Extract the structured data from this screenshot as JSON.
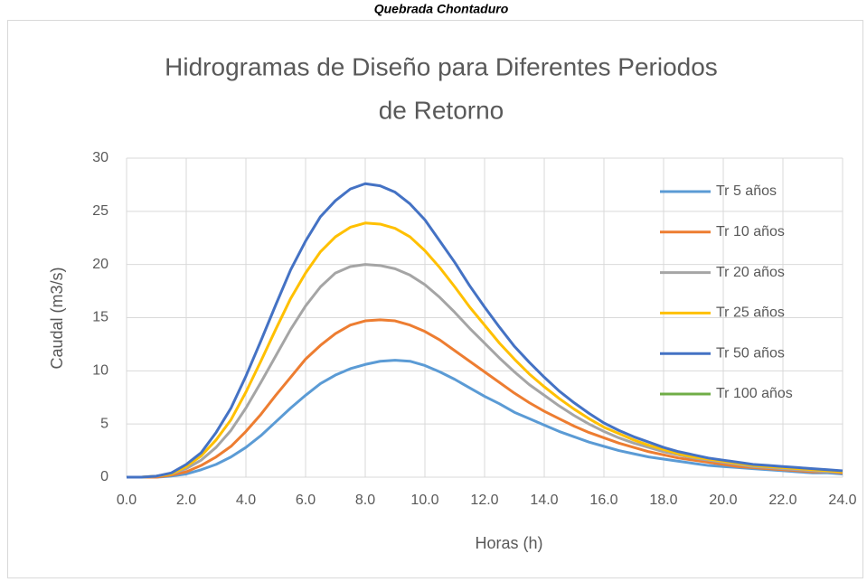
{
  "caption": "Quebrada Chontaduro",
  "chart_data": {
    "type": "line",
    "title": [
      "Hidrogramas de Diseño para Diferentes Periodos",
      "de Retorno"
    ],
    "x_label": "Horas (h)",
    "y_label": "Caudal (m3/s)",
    "x": [
      0,
      0.5,
      1,
      1.5,
      2,
      2.5,
      3,
      3.5,
      4,
      4.5,
      5,
      5.5,
      6,
      6.5,
      7,
      7.5,
      8,
      8.5,
      9,
      9.5,
      10,
      10.5,
      11,
      11.5,
      12,
      12.5,
      13,
      13.5,
      14,
      14.5,
      15,
      15.5,
      16,
      16.5,
      17,
      17.5,
      18,
      18.5,
      19,
      19.5,
      20,
      20.5,
      21,
      21.5,
      22,
      22.5,
      23,
      23.5,
      24
    ],
    "series": [
      {
        "name": "Tr 5 años",
        "color": "#5b9bd5",
        "values": [
          0,
          0,
          0,
          0.1,
          0.3,
          0.7,
          1.2,
          1.9,
          2.8,
          3.9,
          5.2,
          6.5,
          7.7,
          8.8,
          9.6,
          10.2,
          10.6,
          10.9,
          11.0,
          10.9,
          10.5,
          9.9,
          9.2,
          8.4,
          7.6,
          6.9,
          6.1,
          5.5,
          4.9,
          4.3,
          3.8,
          3.3,
          2.9,
          2.5,
          2.2,
          1.9,
          1.7,
          1.5,
          1.3,
          1.1,
          1.0,
          0.9,
          0.8,
          0.7,
          0.6,
          0.5,
          0.4,
          0.4,
          0.3
        ]
      },
      {
        "name": "Tr 10 años",
        "color": "#ed7d31",
        "values": [
          0,
          0,
          0,
          0.2,
          0.5,
          1.1,
          1.9,
          2.9,
          4.3,
          5.9,
          7.7,
          9.4,
          11.1,
          12.4,
          13.5,
          14.3,
          14.7,
          14.8,
          14.7,
          14.3,
          13.7,
          12.9,
          11.9,
          10.9,
          9.9,
          8.9,
          7.9,
          7.0,
          6.2,
          5.5,
          4.8,
          4.2,
          3.7,
          3.2,
          2.8,
          2.4,
          2.1,
          1.8,
          1.6,
          1.4,
          1.2,
          1.0,
          0.9,
          0.8,
          0.7,
          0.6,
          0.5,
          0.5,
          0.4
        ]
      },
      {
        "name": "Tr 20 años",
        "color": "#a5a5a5",
        "values": [
          0,
          0,
          0.1,
          0.3,
          0.8,
          1.6,
          2.8,
          4.4,
          6.5,
          8.9,
          11.4,
          13.9,
          16.1,
          17.9,
          19.2,
          19.8,
          20.0,
          19.9,
          19.6,
          19.0,
          18.1,
          16.9,
          15.5,
          14.0,
          12.6,
          11.2,
          9.9,
          8.7,
          7.7,
          6.7,
          5.8,
          5.0,
          4.3,
          3.7,
          3.2,
          2.8,
          2.4,
          2.1,
          1.8,
          1.6,
          1.4,
          1.2,
          1.0,
          0.9,
          0.8,
          0.7,
          0.6,
          0.5,
          0.5
        ]
      },
      {
        "name": "Tr 25 años",
        "color": "#ffc000",
        "values": [
          0,
          0,
          0.1,
          0.3,
          1.0,
          2.0,
          3.5,
          5.4,
          8.0,
          10.9,
          13.9,
          16.8,
          19.2,
          21.2,
          22.6,
          23.5,
          23.9,
          23.8,
          23.4,
          22.6,
          21.3,
          19.7,
          17.9,
          16.0,
          14.3,
          12.6,
          11.1,
          9.7,
          8.5,
          7.4,
          6.4,
          5.5,
          4.7,
          4.1,
          3.5,
          3.0,
          2.6,
          2.2,
          1.9,
          1.7,
          1.5,
          1.3,
          1.1,
          1.0,
          0.9,
          0.8,
          0.7,
          0.6,
          0.5
        ]
      },
      {
        "name": "Tr 50 años",
        "color": "#4472c4",
        "values": [
          0,
          0,
          0.1,
          0.4,
          1.2,
          2.3,
          4.2,
          6.5,
          9.5,
          12.8,
          16.2,
          19.5,
          22.2,
          24.5,
          26.0,
          27.1,
          27.6,
          27.4,
          26.8,
          25.7,
          24.2,
          22.2,
          20.2,
          18.0,
          16.0,
          14.1,
          12.3,
          10.8,
          9.4,
          8.1,
          7.0,
          6.0,
          5.1,
          4.4,
          3.8,
          3.3,
          2.8,
          2.4,
          2.1,
          1.8,
          1.6,
          1.4,
          1.2,
          1.1,
          1.0,
          0.9,
          0.8,
          0.7,
          0.6
        ]
      },
      {
        "name": "Tr 100 años",
        "color": "#70ad47",
        "values": [
          null,
          null,
          null,
          null,
          null,
          null,
          null,
          null,
          null,
          null,
          null,
          null,
          null,
          null,
          null,
          null,
          null,
          null,
          null,
          null,
          null,
          null,
          null,
          null,
          null,
          null,
          null,
          null,
          null,
          null,
          null,
          null,
          null,
          null,
          null,
          null,
          null,
          null,
          null,
          null,
          null,
          null,
          null,
          null,
          null,
          null,
          null,
          null,
          null
        ]
      }
    ],
    "xlim": [
      0,
      24
    ],
    "xticks": [
      {
        "value": 0,
        "label": "0.0"
      },
      {
        "value": 2,
        "label": "2.0"
      },
      {
        "value": 4,
        "label": "4.0"
      },
      {
        "value": 6,
        "label": "6.0"
      },
      {
        "value": 8,
        "label": "8.0"
      },
      {
        "value": 10,
        "label": "10.0"
      },
      {
        "value": 12,
        "label": "12.0"
      },
      {
        "value": 14,
        "label": "14.0"
      },
      {
        "value": 16,
        "label": "16.0"
      },
      {
        "value": 18,
        "label": "18.0"
      },
      {
        "value": 20,
        "label": "20.0"
      },
      {
        "value": 22,
        "label": "22.0"
      },
      {
        "value": 24,
        "label": "24.0"
      }
    ],
    "ylim": [
      0,
      30
    ],
    "yticks": [
      0,
      5,
      10,
      15,
      20,
      25,
      30
    ],
    "grid": true,
    "legend": "right"
  }
}
